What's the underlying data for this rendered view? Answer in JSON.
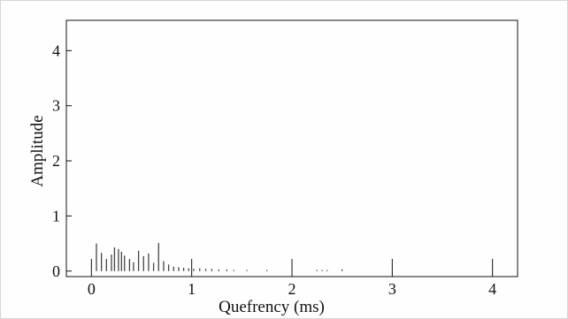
{
  "chart_data": {
    "type": "bar",
    "xlabel": "Quefrency (ms)",
    "ylabel": "Amplitude",
    "xlim": [
      -0.25,
      4.25
    ],
    "ylim": [
      -0.1,
      4.55
    ],
    "xticks": [
      0,
      1,
      2,
      3,
      4
    ],
    "yticks": [
      0,
      1,
      2,
      3,
      4
    ],
    "xtick_labels": [
      "0",
      "1",
      "2",
      "3",
      "4"
    ],
    "ytick_labels": [
      "0",
      "1",
      "2",
      "3",
      "4"
    ],
    "grid": false,
    "series": [
      {
        "x": [
          0.05,
          0.1,
          0.15,
          0.2,
          0.23,
          0.27,
          0.3,
          0.33,
          0.38,
          0.42,
          0.47,
          0.52,
          0.57,
          0.62,
          0.67,
          0.72,
          0.77,
          0.82,
          0.87,
          0.92,
          0.97,
          1.02,
          1.08,
          1.14,
          1.2,
          1.27,
          1.35,
          1.42,
          1.55,
          1.75,
          2.25,
          2.3,
          2.35,
          2.5
        ],
        "values": [
          0.5,
          0.33,
          0.22,
          0.3,
          0.43,
          0.4,
          0.35,
          0.28,
          0.22,
          0.16,
          0.37,
          0.27,
          0.32,
          0.15,
          0.51,
          0.18,
          0.12,
          0.08,
          0.07,
          0.06,
          0.05,
          0.04,
          0.05,
          0.04,
          0.04,
          0.03,
          0.03,
          0.02,
          0.02,
          0.02,
          0.02,
          0.02,
          0.02,
          0.03
        ]
      }
    ]
  }
}
